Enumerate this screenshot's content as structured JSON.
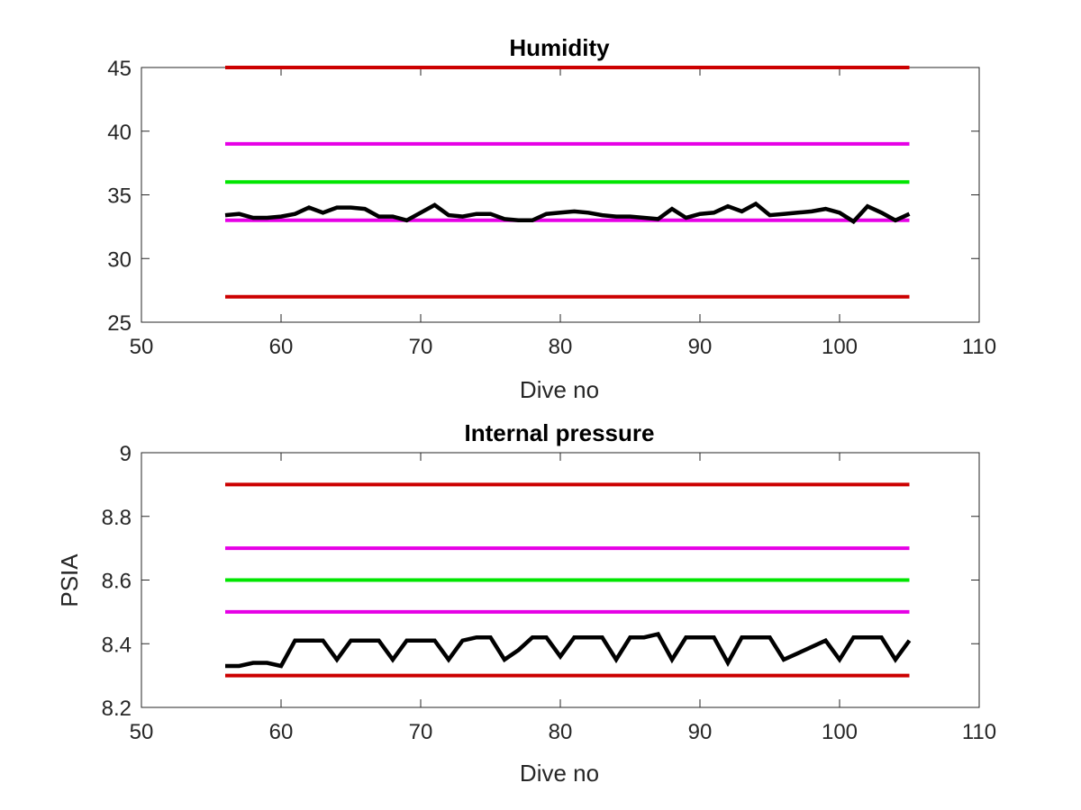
{
  "chart_data": [
    {
      "type": "line",
      "title": "Humidity",
      "xlabel": "Dive no",
      "ylabel": "",
      "xlim": [
        50,
        110
      ],
      "ylim": [
        25,
        45
      ],
      "xticks": [
        "50",
        "60",
        "70",
        "80",
        "90",
        "100",
        "110"
      ],
      "yticks": [
        "25",
        "30",
        "35",
        "40",
        "45"
      ],
      "grid": false,
      "series": [
        {
          "color": "#cc0000",
          "x": [
            56,
            105
          ],
          "values": [
            45,
            45
          ]
        },
        {
          "color": "#e600e6",
          "x": [
            56,
            105
          ],
          "values": [
            39,
            39
          ]
        },
        {
          "color": "#00e600",
          "x": [
            56,
            105
          ],
          "values": [
            36,
            36
          ]
        },
        {
          "color": "#e600e6",
          "x": [
            56,
            105
          ],
          "values": [
            33,
            33
          ]
        },
        {
          "color": "#cc0000",
          "x": [
            56,
            105
          ],
          "values": [
            27,
            27
          ]
        },
        {
          "color": "#000000",
          "x": [
            56,
            57,
            58,
            59,
            60,
            61,
            62,
            63,
            64,
            65,
            66,
            67,
            68,
            69,
            70,
            71,
            72,
            73,
            74,
            75,
            76,
            77,
            78,
            79,
            80,
            81,
            82,
            83,
            84,
            85,
            86,
            87,
            88,
            89,
            90,
            91,
            92,
            93,
            94,
            95,
            96,
            97,
            98,
            99,
            100,
            101,
            102,
            103,
            104,
            105
          ],
          "values": [
            33.4,
            33.5,
            33.2,
            33.2,
            33.3,
            33.5,
            34.0,
            33.6,
            34.0,
            34.0,
            33.9,
            33.3,
            33.3,
            33.0,
            33.6,
            34.2,
            33.4,
            33.3,
            33.5,
            33.5,
            33.1,
            33.0,
            33.0,
            33.5,
            33.6,
            33.7,
            33.6,
            33.4,
            33.3,
            33.3,
            33.2,
            33.1,
            33.9,
            33.2,
            33.5,
            33.6,
            34.1,
            33.7,
            34.3,
            33.4,
            33.5,
            33.6,
            33.7,
            33.9,
            33.6,
            32.9,
            34.1,
            33.6,
            33.0,
            33.5
          ]
        }
      ]
    },
    {
      "type": "line",
      "title": "Internal pressure",
      "xlabel": "Dive no",
      "ylabel": "PSIA",
      "xlim": [
        50,
        110
      ],
      "ylim": [
        8.2,
        9
      ],
      "xticks": [
        "50",
        "60",
        "70",
        "80",
        "90",
        "100",
        "110"
      ],
      "yticks": [
        "8.2",
        "8.4",
        "8.6",
        "8.8",
        "9"
      ],
      "grid": false,
      "series": [
        {
          "color": "#cc0000",
          "x": [
            56,
            105
          ],
          "values": [
            8.9,
            8.9
          ]
        },
        {
          "color": "#e600e6",
          "x": [
            56,
            105
          ],
          "values": [
            8.7,
            8.7
          ]
        },
        {
          "color": "#00e600",
          "x": [
            56,
            105
          ],
          "values": [
            8.6,
            8.6
          ]
        },
        {
          "color": "#e600e6",
          "x": [
            56,
            105
          ],
          "values": [
            8.5,
            8.5
          ]
        },
        {
          "color": "#cc0000",
          "x": [
            56,
            105
          ],
          "values": [
            8.3,
            8.3
          ]
        },
        {
          "color": "#000000",
          "x": [
            56,
            57,
            58,
            59,
            60,
            61,
            62,
            63,
            64,
            65,
            66,
            67,
            68,
            69,
            70,
            71,
            72,
            73,
            74,
            75,
            76,
            77,
            78,
            79,
            80,
            81,
            82,
            83,
            84,
            85,
            86,
            87,
            88,
            89,
            90,
            91,
            92,
            93,
            94,
            95,
            96,
            97,
            98,
            99,
            100,
            101,
            102,
            103,
            104,
            105
          ],
          "values": [
            8.33,
            8.33,
            8.34,
            8.34,
            8.33,
            8.41,
            8.41,
            8.41,
            8.35,
            8.41,
            8.41,
            8.41,
            8.35,
            8.41,
            8.41,
            8.41,
            8.35,
            8.41,
            8.42,
            8.42,
            8.35,
            8.38,
            8.42,
            8.42,
            8.36,
            8.42,
            8.42,
            8.42,
            8.35,
            8.42,
            8.42,
            8.43,
            8.35,
            8.42,
            8.42,
            8.42,
            8.34,
            8.42,
            8.42,
            8.42,
            8.35,
            8.37,
            8.39,
            8.41,
            8.35,
            8.42,
            8.42,
            8.42,
            8.35,
            8.41
          ]
        }
      ]
    }
  ]
}
